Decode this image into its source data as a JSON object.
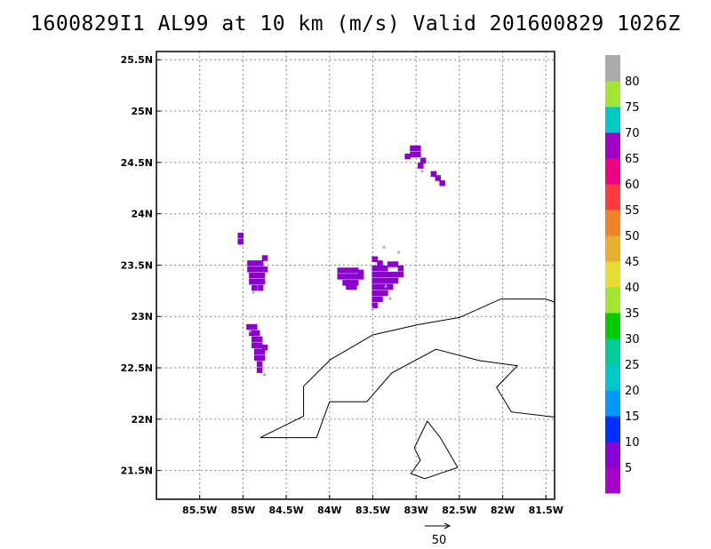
{
  "title": "1600829I1 AL99 at 10 km (m/s) Valid 201600829 1026Z",
  "map": {
    "lon_min": -86.0,
    "lon_max": -81.4,
    "lat_min": 21.22,
    "lat_max": 25.58,
    "grid": true,
    "x_ticks": [
      {
        "value": -85.5,
        "label": "85.5W"
      },
      {
        "value": -85.0,
        "label": "85W"
      },
      {
        "value": -84.5,
        "label": "84.5W"
      },
      {
        "value": -84.0,
        "label": "84W"
      },
      {
        "value": -83.5,
        "label": "83.5W"
      },
      {
        "value": -83.0,
        "label": "83W"
      },
      {
        "value": -82.5,
        "label": "82.5W"
      },
      {
        "value": -82.0,
        "label": "82W"
      },
      {
        "value": -81.5,
        "label": "81.5W"
      }
    ],
    "y_ticks": [
      {
        "value": 21.5,
        "label": "21.5N"
      },
      {
        "value": 22.0,
        "label": "22N"
      },
      {
        "value": 22.5,
        "label": "22.5N"
      },
      {
        "value": 23.0,
        "label": "23N"
      },
      {
        "value": 23.5,
        "label": "23.5N"
      },
      {
        "value": 24.0,
        "label": "24N"
      },
      {
        "value": 24.5,
        "label": "24.5N"
      },
      {
        "value": 25.0,
        "label": "25N"
      },
      {
        "value": 25.5,
        "label": "25.5N"
      }
    ],
    "coastlines": [
      [
        [
          -84.8,
          21.82
        ],
        [
          -84.3,
          22.03
        ],
        [
          -84.3,
          22.32
        ],
        [
          -83.99,
          22.58
        ],
        [
          -83.5,
          22.82
        ],
        [
          -82.98,
          22.92
        ],
        [
          -82.5,
          22.99
        ],
        [
          -82.02,
          23.17
        ],
        [
          -81.5,
          23.17
        ],
        [
          -81.4,
          23.14
        ]
      ],
      [
        [
          -84.8,
          21.82
        ],
        [
          -84.15,
          21.82
        ],
        [
          -84.0,
          22.17
        ],
        [
          -83.57,
          22.17
        ],
        [
          -83.28,
          22.45
        ],
        [
          -82.77,
          22.68
        ],
        [
          -82.27,
          22.57
        ],
        [
          -81.83,
          22.52
        ],
        [
          -82.07,
          22.31
        ],
        [
          -81.9,
          22.07
        ],
        [
          -81.4,
          22.02
        ]
      ],
      [
        [
          -83.02,
          21.72
        ],
        [
          -82.87,
          21.98
        ],
        [
          -82.72,
          21.82
        ],
        [
          -82.52,
          21.53
        ],
        [
          -82.9,
          21.42
        ],
        [
          -83.06,
          21.47
        ],
        [
          -82.95,
          21.6
        ],
        [
          -83.02,
          21.72
        ]
      ]
    ]
  },
  "field": {
    "units": "m/s",
    "color_hint": "#8a00cc",
    "cells": [
      [
        -83.04,
        24.64
      ],
      [
        -82.98,
        24.64
      ],
      [
        -83.04,
        24.58
      ],
      [
        -82.98,
        24.58
      ],
      [
        -83.1,
        24.56
      ],
      [
        -82.92,
        24.52
      ],
      [
        -82.95,
        24.47
      ],
      [
        -82.8,
        24.39
      ],
      [
        -82.75,
        24.35
      ],
      [
        -82.7,
        24.3
      ],
      [
        -85.03,
        23.79
      ],
      [
        -85.03,
        23.73
      ],
      [
        -84.92,
        23.52
      ],
      [
        -84.86,
        23.52
      ],
      [
        -84.8,
        23.52
      ],
      [
        -84.75,
        23.57
      ],
      [
        -84.92,
        23.46
      ],
      [
        -84.86,
        23.46
      ],
      [
        -84.8,
        23.46
      ],
      [
        -84.75,
        23.46
      ],
      [
        -84.9,
        23.4
      ],
      [
        -84.84,
        23.4
      ],
      [
        -84.78,
        23.4
      ],
      [
        -84.9,
        23.34
      ],
      [
        -84.84,
        23.34
      ],
      [
        -84.78,
        23.34
      ],
      [
        -84.87,
        23.28
      ],
      [
        -84.8,
        23.28
      ],
      [
        -83.88,
        23.45
      ],
      [
        -83.82,
        23.45
      ],
      [
        -83.76,
        23.45
      ],
      [
        -83.7,
        23.45
      ],
      [
        -83.64,
        23.43
      ],
      [
        -83.88,
        23.39
      ],
      [
        -83.82,
        23.39
      ],
      [
        -83.76,
        23.39
      ],
      [
        -83.7,
        23.39
      ],
      [
        -83.64,
        23.39
      ],
      [
        -83.82,
        23.33
      ],
      [
        -83.76,
        23.33
      ],
      [
        -83.7,
        23.33
      ],
      [
        -83.78,
        23.29
      ],
      [
        -83.72,
        23.29
      ],
      [
        -83.48,
        23.56
      ],
      [
        -83.42,
        23.52
      ],
      [
        -83.48,
        23.47
      ],
      [
        -83.42,
        23.47
      ],
      [
        -83.36,
        23.47
      ],
      [
        -83.3,
        23.51
      ],
      [
        -83.24,
        23.51
      ],
      [
        -83.18,
        23.47
      ],
      [
        -83.48,
        23.41
      ],
      [
        -83.42,
        23.41
      ],
      [
        -83.36,
        23.41
      ],
      [
        -83.3,
        23.41
      ],
      [
        -83.24,
        23.41
      ],
      [
        -83.18,
        23.41
      ],
      [
        -83.48,
        23.35
      ],
      [
        -83.42,
        23.35
      ],
      [
        -83.36,
        23.35
      ],
      [
        -83.3,
        23.35
      ],
      [
        -83.24,
        23.35
      ],
      [
        -83.48,
        23.29
      ],
      [
        -83.42,
        23.29
      ],
      [
        -83.36,
        23.29
      ],
      [
        -83.3,
        23.29
      ],
      [
        -83.48,
        23.23
      ],
      [
        -83.42,
        23.23
      ],
      [
        -83.36,
        23.23
      ],
      [
        -83.48,
        23.17
      ],
      [
        -83.42,
        23.17
      ],
      [
        -83.48,
        23.11
      ],
      [
        -84.93,
        22.9
      ],
      [
        -84.87,
        22.9
      ],
      [
        -84.9,
        22.84
      ],
      [
        -84.84,
        22.84
      ],
      [
        -84.87,
        22.78
      ],
      [
        -84.81,
        22.78
      ],
      [
        -84.87,
        22.72
      ],
      [
        -84.81,
        22.72
      ],
      [
        -84.75,
        22.7
      ],
      [
        -84.84,
        22.66
      ],
      [
        -84.78,
        22.66
      ],
      [
        -84.84,
        22.6
      ],
      [
        -84.78,
        22.6
      ],
      [
        -84.81,
        22.54
      ],
      [
        -84.81,
        22.48
      ]
    ],
    "vectors": [
      [
        -82.93,
        24.42
      ],
      [
        -83.37,
        23.68
      ],
      [
        -83.2,
        23.63
      ],
      [
        -84.88,
        23.24
      ],
      [
        -83.35,
        23.3
      ],
      [
        -83.3,
        23.18
      ],
      [
        -83.5,
        23.08
      ],
      [
        -84.75,
        22.44
      ],
      [
        -84.92,
        22.86
      ]
    ]
  },
  "colorbar": {
    "colors": [
      "#a800c8",
      "#8a00d8",
      "#0030ff",
      "#0099ff",
      "#00c8c8",
      "#00cc96",
      "#00cc00",
      "#a0e632",
      "#e6dc32",
      "#e6af2d",
      "#f08228",
      "#fa3c3c",
      "#f00082",
      "#a000c8",
      "#00c8c8",
      "#a0e632",
      "#aaaaaa"
    ],
    "labels": [
      "5",
      "10",
      "15",
      "20",
      "25",
      "30",
      "35",
      "40",
      "45",
      "50",
      "55",
      "60",
      "65",
      "70",
      "75",
      "80"
    ]
  },
  "reference_vector": {
    "label": "50"
  }
}
